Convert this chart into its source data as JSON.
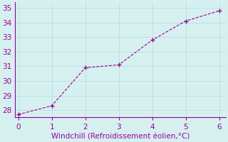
{
  "x": [
    0,
    1,
    2,
    3,
    4,
    5,
    6
  ],
  "y": [
    27.7,
    28.3,
    30.9,
    31.1,
    32.8,
    34.1,
    34.8
  ],
  "line_color": "#990099",
  "marker_color": "#990099",
  "marker_style": "+",
  "marker_size": 4,
  "bg_color": "#d6f0f0",
  "grid_color": "#b8dede",
  "xlabel": "Windchill (Refroidissement éolien,°C)",
  "xlabel_color": "#990099",
  "xlabel_fontsize": 7.5,
  "tick_color": "#990099",
  "tick_fontsize": 7.5,
  "xlim": [
    -0.1,
    6.2
  ],
  "ylim": [
    27.5,
    35.4
  ],
  "yticks": [
    28,
    29,
    30,
    31,
    32,
    33,
    34,
    35
  ],
  "xticks": [
    0,
    1,
    2,
    3,
    4,
    5,
    6
  ],
  "linewidth": 0.8,
  "linestyle": "--",
  "spine_color": "#990099",
  "axis_linewidth": 0.8
}
